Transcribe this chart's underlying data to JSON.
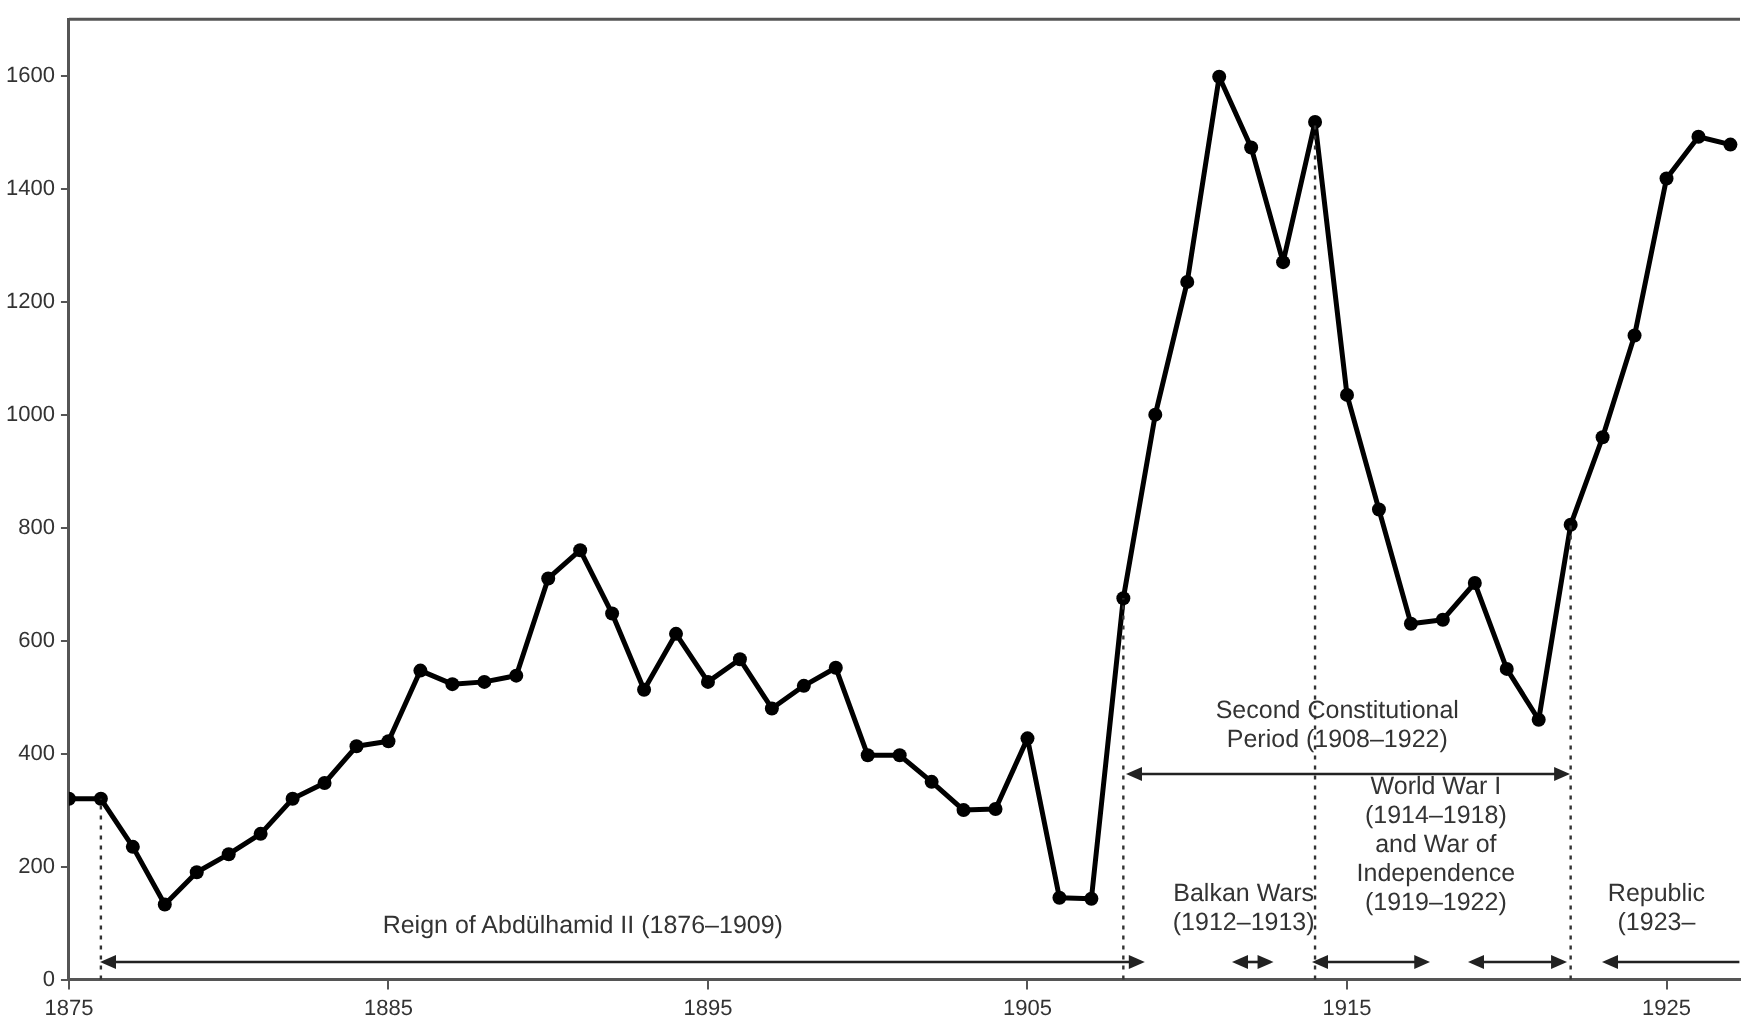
{
  "chart_data": {
    "type": "line",
    "x": [
      1875,
      1876,
      1877,
      1878,
      1879,
      1880,
      1881,
      1882,
      1883,
      1884,
      1885,
      1886,
      1887,
      1888,
      1889,
      1890,
      1891,
      1892,
      1893,
      1894,
      1895,
      1896,
      1897,
      1898,
      1899,
      1900,
      1901,
      1902,
      1903,
      1904,
      1905,
      1906,
      1907,
      1908,
      1909,
      1910,
      1911,
      1912,
      1913,
      1914,
      1915,
      1916,
      1917,
      1918,
      1919,
      1920,
      1921,
      1922,
      1923,
      1924,
      1925,
      1926,
      1927
    ],
    "values": [
      320,
      320,
      235,
      133,
      190,
      222,
      258,
      320,
      348,
      413,
      422,
      547,
      523,
      527,
      538,
      710,
      760,
      648,
      513,
      612,
      527,
      567,
      480,
      520,
      552,
      397,
      397,
      350,
      300,
      302,
      427,
      145,
      143,
      675,
      1000,
      1235,
      1598,
      1473,
      1270,
      1518,
      1035,
      832,
      630,
      637,
      702,
      550,
      460,
      805,
      960,
      1140,
      1418,
      1492,
      1478
    ],
    "color": "#000000",
    "marker": "circle",
    "line_style": "solid",
    "xlim": [
      1875,
      1927.3
    ],
    "xticks": [
      1875,
      1885,
      1895,
      1905,
      1915,
      1925
    ],
    "ylim": [
      0,
      1700
    ],
    "yticks": [
      0,
      200,
      400,
      600,
      800,
      1000,
      1200,
      1400,
      1600
    ],
    "grid": false,
    "legend": false,
    "ref_lines": [
      {
        "axis": "x",
        "value": 1876,
        "line_style": "dotted"
      },
      {
        "axis": "x",
        "value": 1908,
        "line_style": "dotted"
      },
      {
        "axis": "x",
        "value": 1914,
        "line_style": "dotted"
      },
      {
        "axis": "x",
        "value": 1922,
        "line_style": "dotted"
      }
    ],
    "annotations": [
      "Reign of Abdülhamid II (1876–1909)",
      "Second Constitutional\nPeriod (1908–1922)",
      "Balkan Wars\n(1912–1913)",
      "World War I\n(1914–1918)\nand War of\nIndependence\n(1919–1922)",
      "Republic\n(1923–"
    ]
  }
}
